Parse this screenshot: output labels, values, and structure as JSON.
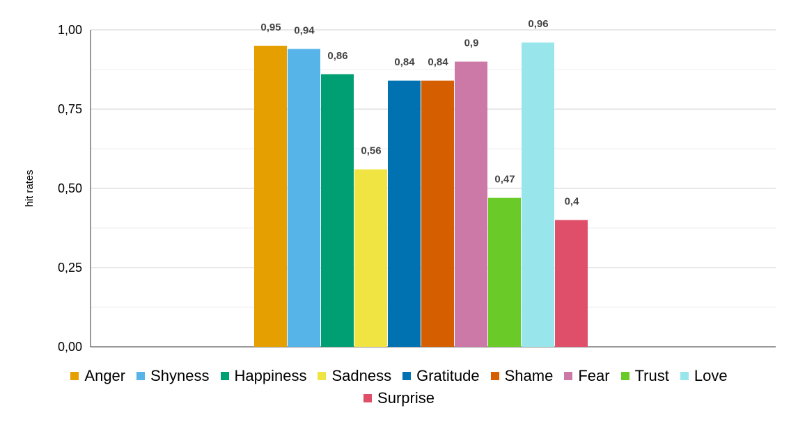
{
  "chart_data": {
    "type": "bar",
    "title": "",
    "xlabel": "",
    "ylabel": "hit rates",
    "ylim": [
      0,
      1
    ],
    "yticks": [
      "0,00",
      "0,25",
      "0,50",
      "0,75",
      "1,00"
    ],
    "tick_values": [
      0,
      0.25,
      0.5,
      0.75,
      1
    ],
    "grid": true,
    "legend_position": "bottom",
    "series": [
      {
        "name": "Anger",
        "value": 0.95,
        "label": "0,95",
        "color": "#E69F00"
      },
      {
        "name": "Shyness",
        "value": 0.94,
        "label": "0,94",
        "color": "#56B4E9"
      },
      {
        "name": "Happiness",
        "value": 0.86,
        "label": "0,86",
        "color": "#009E73"
      },
      {
        "name": "Sadness",
        "value": 0.56,
        "label": "0,56",
        "color": "#F0E442"
      },
      {
        "name": "Gratitude",
        "value": 0.84,
        "label": "0,84",
        "color": "#0072B2"
      },
      {
        "name": "Shame",
        "value": 0.84,
        "label": "0,84",
        "color": "#D55E00"
      },
      {
        "name": "Fear",
        "value": 0.9,
        "label": "0,9",
        "color": "#CC79A7"
      },
      {
        "name": "Trust",
        "value": 0.47,
        "label": "0,47",
        "color": "#6ACA27"
      },
      {
        "name": "Love",
        "value": 0.96,
        "label": "0,96",
        "color": "#98E6EC"
      },
      {
        "name": "Surprise",
        "value": 0.4,
        "label": "0,4",
        "color": "#E04F69"
      }
    ]
  }
}
